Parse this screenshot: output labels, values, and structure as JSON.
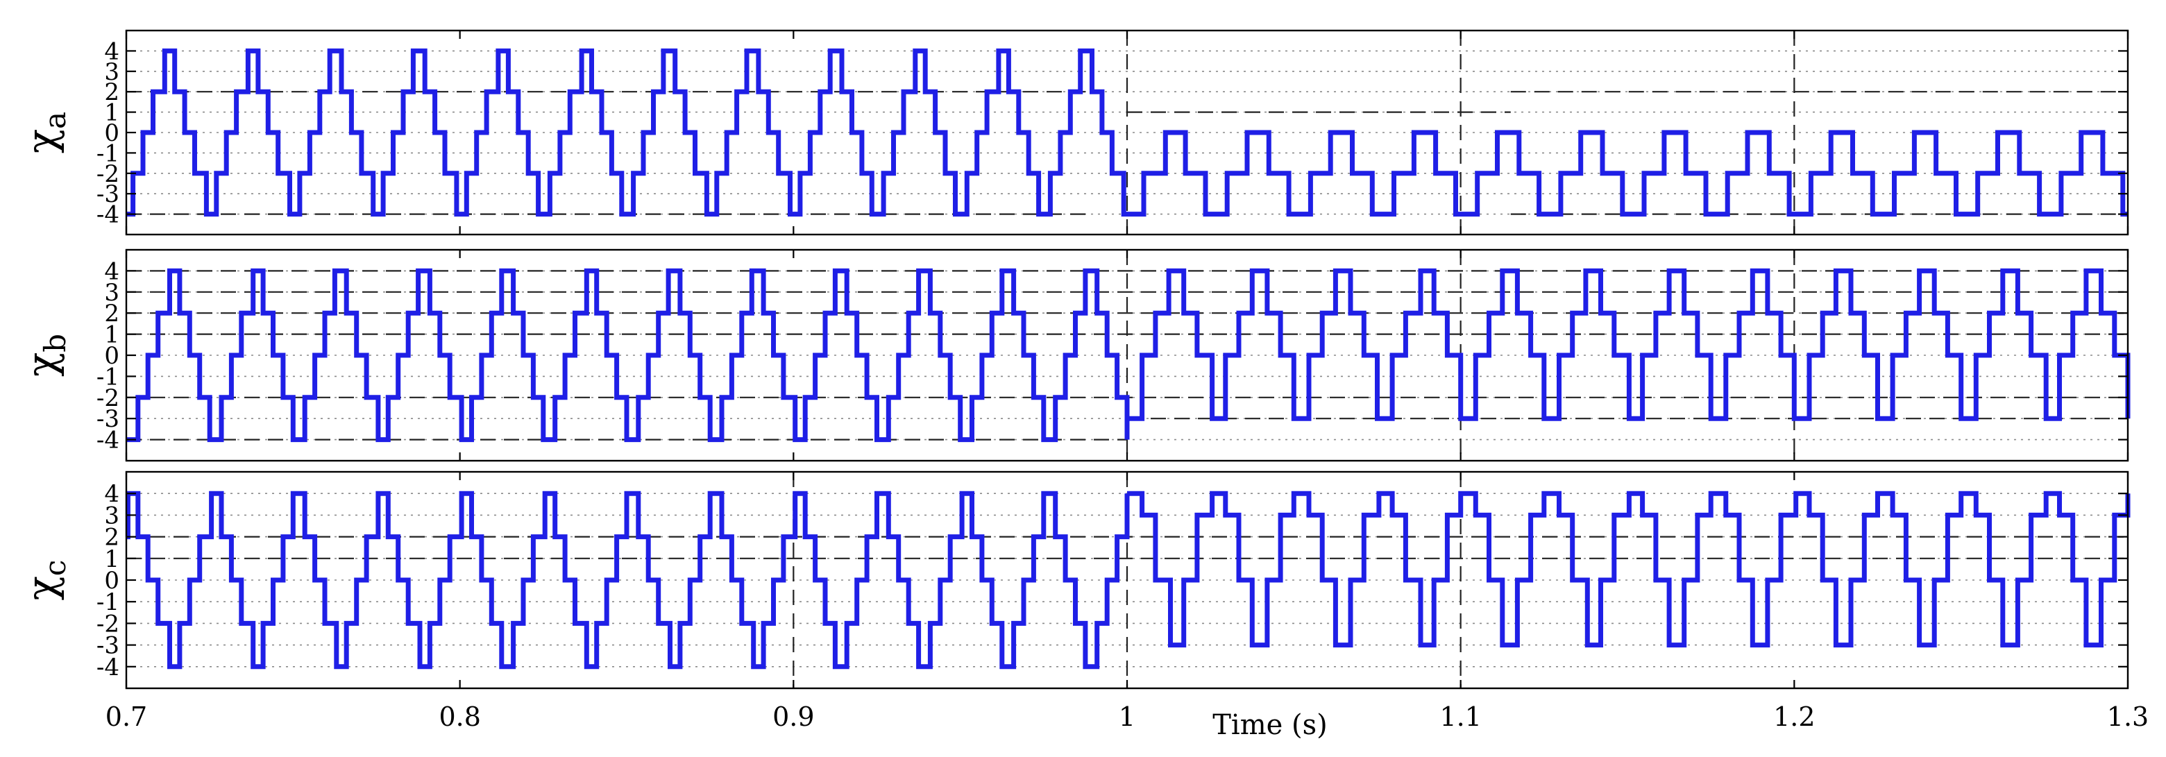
{
  "chart_data": {
    "type": "line",
    "xlabel": "Time (s)",
    "xlim": [
      0.7,
      1.3
    ],
    "x_ticks": [
      0.7,
      0.8,
      0.9,
      1.0,
      1.1,
      1.2,
      1.3
    ],
    "x_tick_labels": [
      "0.7",
      "0.8",
      "0.9",
      "1",
      "1.1",
      "1.2",
      "1.3"
    ],
    "line_color": "#1f1fe6",
    "grid": "dotted",
    "panels": [
      {
        "ylabel": "χ",
        "ylabel_sub": "a",
        "ylim": [
          -5,
          5
        ],
        "y_ticks": [
          -4,
          -3,
          -2,
          -1,
          0,
          1,
          2,
          3,
          4
        ],
        "y_tick_labels": [
          "-4",
          "-3",
          "-2",
          "-1",
          "0",
          "1",
          "2",
          "3",
          "4"
        ],
        "reference_lines": [
          {
            "y": 2,
            "x_start": 0.7,
            "x_end": 0.99
          },
          {
            "y": -4,
            "x_start": 0.7,
            "x_end": 0.99
          },
          {
            "y": 1,
            "x_start": 1.0,
            "x_end": 1.115
          },
          {
            "y": 2,
            "x_start": 1.115,
            "x_end": 1.3
          },
          {
            "y": -4,
            "x_start": 1.115,
            "x_end": 1.3
          }
        ],
        "vertical_markers": [
          1.0,
          1.1,
          1.2
        ],
        "series": [
          {
            "x_start": 0.7,
            "x_end": 1.0,
            "period": 0.025,
            "phase": 0.011,
            "levels": [
              4,
              2,
              0,
              -2,
              -4
            ]
          },
          {
            "x_start": 1.0,
            "x_end": 1.3,
            "period": 0.025,
            "phase": 0.011,
            "levels": [
              0,
              -2,
              -4
            ]
          }
        ]
      },
      {
        "ylabel": "χ",
        "ylabel_sub": "b",
        "ylim": [
          -5,
          5
        ],
        "y_ticks": [
          -4,
          -3,
          -2,
          -1,
          0,
          1,
          2,
          3,
          4
        ],
        "y_tick_labels": [
          "-4",
          "-3",
          "-2",
          "-1",
          "0",
          "1",
          "2",
          "3",
          "4"
        ],
        "reference_lines": [
          {
            "y": 4,
            "x_start": 0.7,
            "x_end": 1.3
          },
          {
            "y": 3,
            "x_start": 0.7,
            "x_end": 1.3
          },
          {
            "y": 2,
            "x_start": 0.7,
            "x_end": 1.3
          },
          {
            "y": 1,
            "x_start": 0.7,
            "x_end": 1.3
          },
          {
            "y": -2,
            "x_start": 0.7,
            "x_end": 1.3
          },
          {
            "y": -3,
            "x_start": 1.0,
            "x_end": 1.3
          },
          {
            "y": -4,
            "x_start": 0.7,
            "x_end": 1.0
          }
        ],
        "vertical_markers": [
          1.0,
          1.1,
          1.2
        ],
        "series": [
          {
            "x_start": 0.7,
            "x_end": 1.0,
            "period": 0.025,
            "phase": 0.0125,
            "levels": [
              4,
              2,
              0,
              -2,
              -4
            ]
          },
          {
            "x_start": 1.0,
            "x_end": 1.3,
            "period": 0.025,
            "phase": 0.0125,
            "levels": [
              4,
              2,
              0,
              -3
            ]
          }
        ]
      },
      {
        "ylabel": "χ",
        "ylabel_sub": "c",
        "ylim": [
          -5,
          5
        ],
        "y_ticks": [
          -4,
          -3,
          -2,
          -1,
          0,
          1,
          2,
          3,
          4
        ],
        "y_tick_labels": [
          "-4",
          "-3",
          "-2",
          "-1",
          "0",
          "1",
          "2",
          "3",
          "4"
        ],
        "reference_lines": [
          {
            "y": 2,
            "x_start": 0.7,
            "x_end": 1.3
          },
          {
            "y": 1,
            "x_start": 0.7,
            "x_end": 1.3
          }
        ],
        "vertical_markers": [
          0.9,
          1.0,
          1.1
        ],
        "series": [
          {
            "x_start": 0.7,
            "x_end": 1.0,
            "period": 0.025,
            "phase": 0.0,
            "levels": [
              4,
              2,
              0,
              -2,
              -4
            ]
          },
          {
            "x_start": 1.0,
            "x_end": 1.3,
            "period": 0.025,
            "phase": 0.0,
            "levels": [
              4,
              3,
              0,
              -3
            ]
          }
        ]
      }
    ]
  }
}
